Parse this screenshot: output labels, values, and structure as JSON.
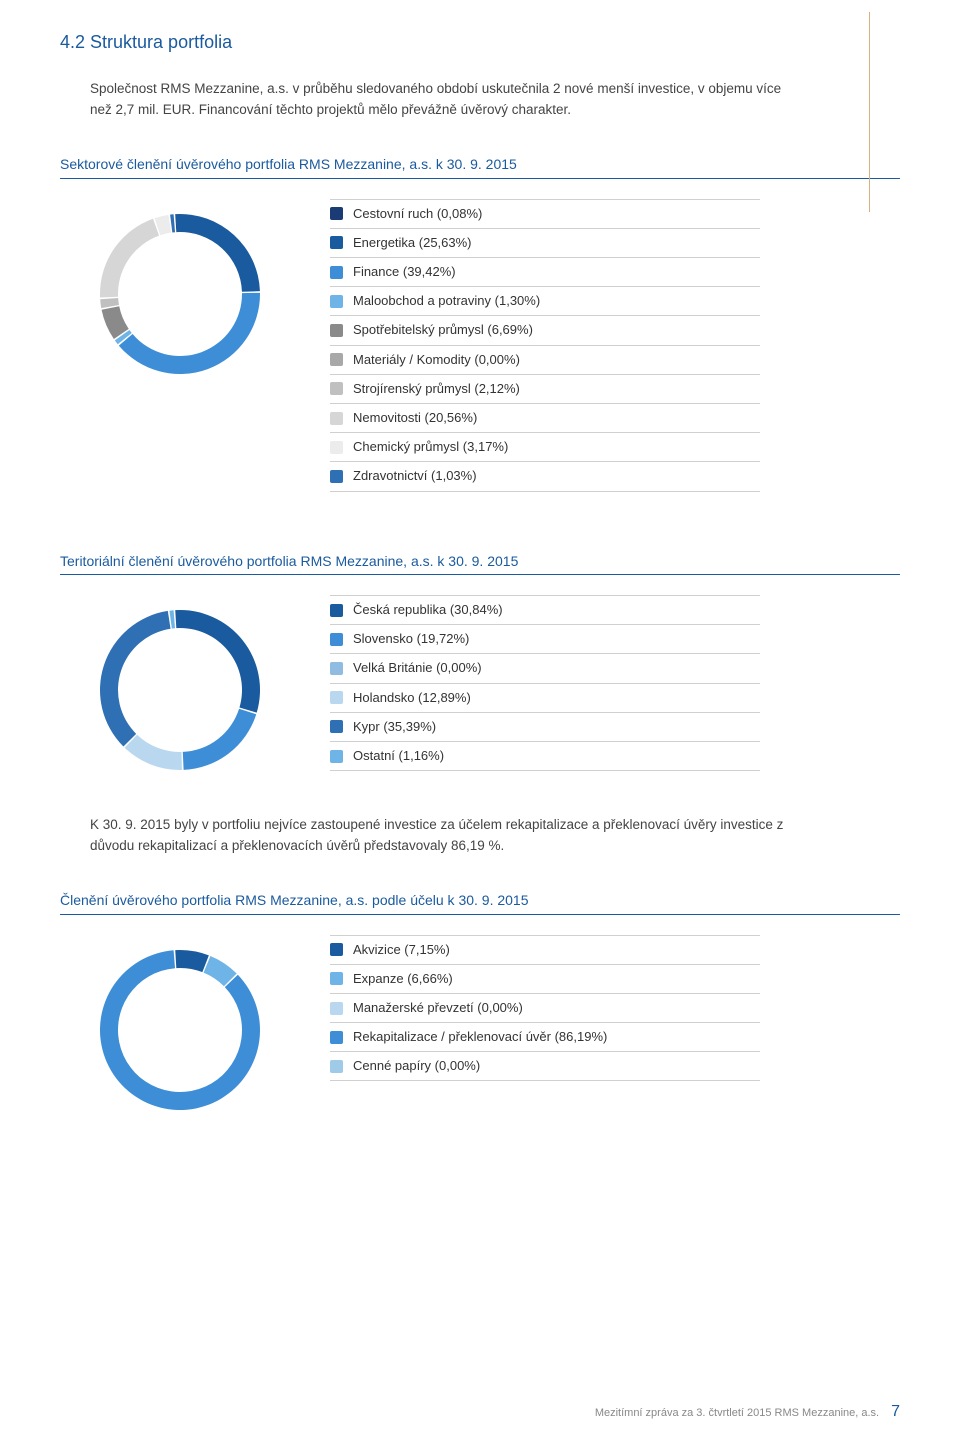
{
  "page": {
    "section_title": "4.2 Struktura portfolia",
    "intro_text": "Společnost RMS Mezzanine, a.s. v průběhu sledovaného období uskutečnila 2 nové menší investice, v objemu více než 2,7 mil. EUR. Financování těchto projektů mělo převážně úvěrový charakter.",
    "mid_text": "K 30. 9. 2015 byly v portfoliu nejvíce zastoupené investice za účelem rekapitalizace a překlenovací úvěry investice z důvodu rekapitalizací a překlenovacích úvěrů představovaly 86,19 %.",
    "footer_text": "Mezitímní zpráva za 3. čtvrtletí 2015 RMS Mezzanine, a.s.",
    "page_number": "7"
  },
  "sector_chart": {
    "heading": "Sektorové členění úvěrového portfolia RMS Mezzanine, a.s. k 30. 9. 2015",
    "type": "donut",
    "donut_outer_r": 80,
    "donut_inner_r": 62,
    "rotation_deg": -94,
    "background_color": "#ffffff",
    "items": [
      {
        "label": "Cestovní ruch (0,08%)",
        "value": 0.08,
        "color": "#1a3b73"
      },
      {
        "label": "Energetika (25,63%)",
        "value": 25.63,
        "color": "#1a5a9e"
      },
      {
        "label": "Finance (39,42%)",
        "value": 39.42,
        "color": "#3d8ed6"
      },
      {
        "label": "Maloobchod a potraviny (1,30%)",
        "value": 1.3,
        "color": "#6fb4e6"
      },
      {
        "label": "Spotřebitelský průmysl (6,69%)",
        "value": 6.69,
        "color": "#8a8a8a"
      },
      {
        "label": "Materiály / Komodity (0,00%)",
        "value": 0.0,
        "color": "#a8a8a8"
      },
      {
        "label": "Strojírenský průmysl (2,12%)",
        "value": 2.12,
        "color": "#c0c0c0"
      },
      {
        "label": "Nemovitosti (20,56%)",
        "value": 20.56,
        "color": "#d6d6d6"
      },
      {
        "label": "Chemický průmysl (3,17%)",
        "value": 3.17,
        "color": "#ececec"
      },
      {
        "label": "Zdravotnictví (1,03%)",
        "value": 1.03,
        "color": "#2f6fb3"
      }
    ]
  },
  "territory_chart": {
    "heading": "Teritoriální členění úvěrového portfolia RMS Mezzanine, a.s. k 30. 9. 2015",
    "type": "donut",
    "donut_outer_r": 80,
    "donut_inner_r": 62,
    "rotation_deg": -94,
    "background_color": "#ffffff",
    "items": [
      {
        "label": "Česká republika (30,84%)",
        "value": 30.84,
        "color": "#1a5a9e"
      },
      {
        "label": "Slovensko (19,72%)",
        "value": 19.72,
        "color": "#3d8ed6"
      },
      {
        "label": "Velká Británie (0,00%)",
        "value": 0.0,
        "color": "#8fbce0"
      },
      {
        "label": "Holandsko (12,89%)",
        "value": 12.89,
        "color": "#b9d7ee"
      },
      {
        "label": "Kypr (35,39%)",
        "value": 35.39,
        "color": "#2f6fb3"
      },
      {
        "label": "Ostatní (1,16%)",
        "value": 1.16,
        "color": "#6fb4e6"
      }
    ]
  },
  "purpose_chart": {
    "heading": "Členění úvěrového portfolia RMS Mezzanine, a.s. podle účelu k 30. 9. 2015",
    "type": "donut",
    "donut_outer_r": 80,
    "donut_inner_r": 62,
    "rotation_deg": -94,
    "background_color": "#ffffff",
    "items": [
      {
        "label": "Akvizice (7,15%)",
        "value": 7.15,
        "color": "#1a5a9e"
      },
      {
        "label": "Expanze (6,66%)",
        "value": 6.66,
        "color": "#6fb4e6"
      },
      {
        "label": "Manažerské převzetí (0,00%)",
        "value": 0.0,
        "color": "#b9d7ee"
      },
      {
        "label": "Rekapitalizace / překlenovací úvěr (86,19%)",
        "value": 86.19,
        "color": "#3d8ed6"
      },
      {
        "label": "Cenné papíry (0,00%)",
        "value": 0.0,
        "color": "#9fcbe8"
      }
    ]
  }
}
